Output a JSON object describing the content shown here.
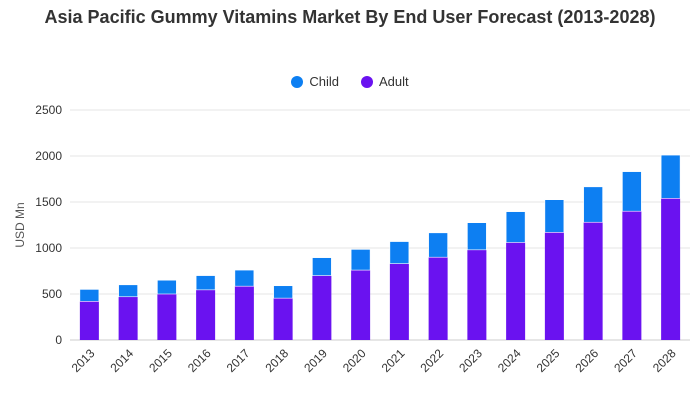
{
  "colors": {
    "child": "#0d7ff2",
    "adult": "#6a12f0",
    "grid": "#e6e6e6",
    "axis": "#333333"
  },
  "chart_data": {
    "type": "bar",
    "stacked": true,
    "title": "Asia Pacific Gummy Vitamins Market By End User Forecast (2013-2028)",
    "ylabel": "USD Mn",
    "xlabel": "",
    "ylim": [
      0,
      2500
    ],
    "yticks": [
      0,
      500,
      1000,
      1500,
      2000,
      2500
    ],
    "grid": true,
    "legend_position": "top-center",
    "categories": [
      "2013",
      "2014",
      "2015",
      "2016",
      "2017",
      "2018",
      "2019",
      "2020",
      "2021",
      "2022",
      "2023",
      "2024",
      "2025",
      "2026",
      "2027",
      "2028"
    ],
    "series": [
      {
        "name": "Adult",
        "color": "#6a12f0",
        "values": [
          420,
          470,
          500,
          545,
          585,
          455,
          700,
          760,
          830,
          900,
          980,
          1060,
          1170,
          1280,
          1400,
          1540
        ]
      },
      {
        "name": "Child",
        "color": "#0d7ff2",
        "values": [
          130,
          130,
          150,
          155,
          175,
          135,
          195,
          225,
          240,
          265,
          295,
          335,
          355,
          385,
          430,
          470
        ]
      }
    ],
    "legend": [
      "Child",
      "Adult"
    ]
  }
}
